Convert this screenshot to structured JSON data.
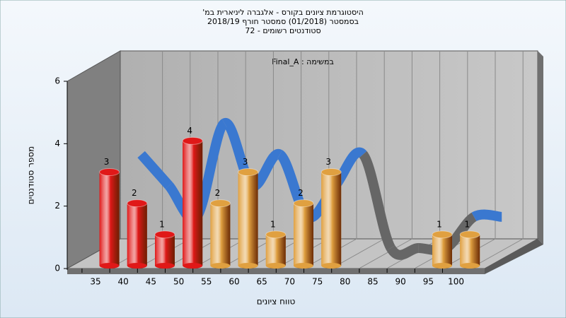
{
  "chart_data": {
    "type": "bar",
    "title": "היסטוגרמת ציונים בקורס - אלגברה ליניארית במ'",
    "subtitle": "בסמסטר  (01/2018)  סמסטר חורף 2018/19",
    "subtitle2": "סטודנטים רשומים - 72",
    "annotation": "במשימה : Final_A",
    "x_label": "טווח ציונים",
    "y_label": "מספר סטודנטים",
    "categories": [
      35,
      40,
      45,
      50,
      55,
      60,
      65,
      70,
      75,
      80,
      85,
      90,
      95,
      100
    ],
    "values": [
      3,
      2,
      1,
      4,
      2,
      3,
      1,
      2,
      3,
      0,
      0,
      0,
      1,
      1
    ],
    "colors": [
      "#e01818",
      "#e01818",
      "#e01818",
      "#e01818",
      "#e0a040",
      "#e0a040",
      "#e0a040",
      "#e0a040",
      "#e0a040",
      "#e0a040",
      "#e0a040",
      "#e0a040",
      "#e0a040",
      "#e0a040"
    ],
    "ribbon_color": "#3a78d0",
    "ribbon_zero_color": "#666666",
    "ylim": [
      0,
      6
    ],
    "yticks": [
      0,
      2,
      4,
      6
    ],
    "grid": true
  }
}
